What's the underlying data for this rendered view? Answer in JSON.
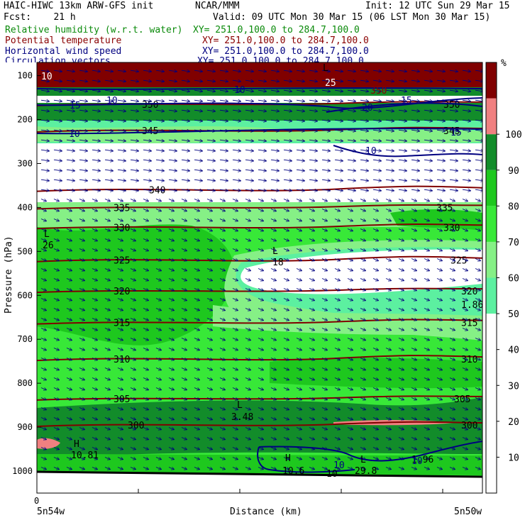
{
  "header": {
    "line1_left": "HAIC-HIWC 13km ARW-GFS init",
    "line1_mid": "NCAR/MMM",
    "line1_right": "Init: 12 UTC Sun 29 Mar 15",
    "line2_left": "Fcst:    21 h",
    "line2_right": "Valid: 09 UTC Mon 30 Mar 15 (06 LST Mon 30 Mar 15)",
    "fields": [
      {
        "name": "Relative humidity (w.r.t. water)",
        "xy": "XY= 251.0,100.0 to 284.7,100.0",
        "color": "#0a8a0a"
      },
      {
        "name": "Potential temperature",
        "xy": "XY= 251.0,100.0 to 284.7,100.0",
        "color": "#8a0000"
      },
      {
        "name": "Horizontal wind speed",
        "xy": "XY= 251.0,100.0 to 284.7,100.0",
        "color": "#000080"
      },
      {
        "name": "Circulation vectors",
        "xy": "XY= 251.0,100.0 to 284.7,100.0",
        "color": "#000080"
      }
    ]
  },
  "chart_data": {
    "type": "heatmap",
    "ylabel": "Pressure (hPa)",
    "xlabel": "Distance (km)",
    "x_tick_zero": "0",
    "x_end_left": "5n54w",
    "x_end_right": "5n50w",
    "y_ticks": [
      100,
      200,
      300,
      400,
      500,
      600,
      700,
      800,
      900,
      1000
    ],
    "y_range": [
      1050,
      70
    ],
    "colorbar": {
      "unit": "%",
      "ticks": [
        10,
        20,
        30,
        40,
        50,
        60,
        70,
        80,
        90,
        100
      ],
      "bands": [
        {
          "from": 0,
          "to": 50,
          "color": "#ffffff"
        },
        {
          "from": 50,
          "to": 60,
          "color": "#5cf0a0"
        },
        {
          "from": 60,
          "to": 70,
          "color": "#86f086"
        },
        {
          "from": 70,
          "to": 80,
          "color": "#38e838"
        },
        {
          "from": 80,
          "to": 90,
          "color": "#1ec81e"
        },
        {
          "from": 90,
          "to": 100,
          "color": "#128c2a"
        },
        {
          "from": 100,
          "to": 110,
          "color": "#f08080"
        },
        {
          "from": 110,
          "to": 120,
          "color": "#800000"
        }
      ]
    },
    "theta_contours": [
      {
        "value": 350,
        "p": 165,
        "label_x": [
          200,
          625
        ]
      },
      {
        "value": 345,
        "p": 225,
        "label_x": [
          200,
          625
        ]
      },
      {
        "value": 340,
        "p": 360,
        "label_x": [
          210
        ]
      },
      {
        "value": 335,
        "p": 400,
        "label_x": [
          160,
          615
        ]
      },
      {
        "value": 330,
        "p": 445,
        "label_x": [
          160,
          625
        ]
      },
      {
        "value": 325,
        "p": 520,
        "label_x": [
          160,
          635
        ]
      },
      {
        "value": 320,
        "p": 590,
        "label_x": [
          160,
          650
        ]
      },
      {
        "value": 315,
        "p": 662,
        "label_x": [
          160,
          650
        ]
      },
      {
        "value": 310,
        "p": 745,
        "label_x": [
          160,
          650
        ]
      },
      {
        "value": 305,
        "p": 835,
        "label_x": [
          160,
          640
        ]
      },
      {
        "value": 300,
        "p": 895,
        "label_x": [
          180,
          650
        ]
      }
    ],
    "wind_labels": [
      "15",
      "10",
      "15",
      "10",
      "20",
      "15",
      "10",
      "10",
      "10",
      "10"
    ],
    "annotations": [
      "L",
      "26",
      "L",
      "18",
      "1.86",
      "L",
      "3.48",
      "H",
      "10.81",
      "H",
      "10.6",
      "L",
      "29.8",
      "10",
      "1.96",
      "L",
      "10",
      "350",
      "25"
    ],
    "grid": false
  }
}
